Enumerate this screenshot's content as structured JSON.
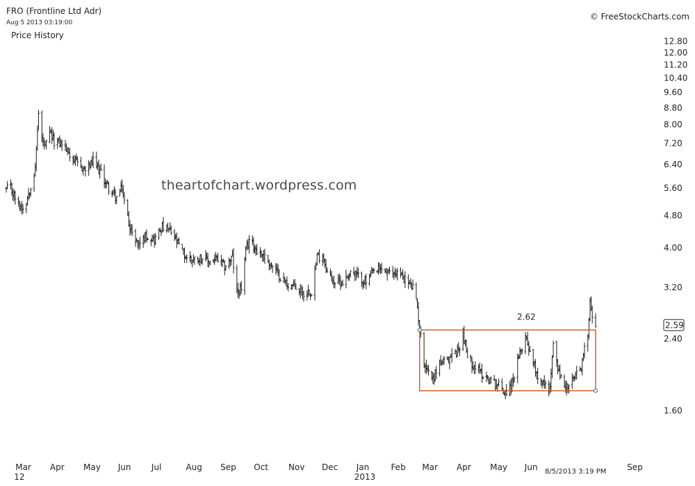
{
  "header": {
    "symbol": "FRO (Frontline Ltd Adr)",
    "timestamp": "Aug 5 2013 03:19:00",
    "panel_title": "Price History",
    "source": "© FreeStockCharts.com",
    "watermark": "theartofchart.wordpress.com"
  },
  "chart_data": {
    "type": "ohlc",
    "title": "Price History",
    "y_scale": "log",
    "ylim": [
      1.4,
      13.5
    ],
    "y_ticks": [
      1.6,
      2.4,
      3.2,
      4.0,
      4.8,
      5.6,
      6.4,
      7.2,
      8.0,
      8.8,
      9.6,
      10.4,
      11.2,
      12.0,
      12.8
    ],
    "y_tick_labels": [
      "1.60",
      "2.40",
      "3.20",
      "4.00",
      "4.80",
      "5.60",
      "6.40",
      "7.20",
      "8.00",
      "8.80",
      "9.60",
      "10.40",
      "11.20",
      "12.00",
      "12.80"
    ],
    "x_ticks": [
      {
        "label": "Mar",
        "sub": "12",
        "date": "2012-03-01"
      },
      {
        "label": "Apr",
        "sub": "",
        "date": "2012-04-01"
      },
      {
        "label": "May",
        "sub": "",
        "date": "2012-05-01"
      },
      {
        "label": "Jun",
        "sub": "",
        "date": "2012-06-01"
      },
      {
        "label": "Jul",
        "sub": "",
        "date": "2012-07-01"
      },
      {
        "label": "Aug",
        "sub": "",
        "date": "2012-08-01"
      },
      {
        "label": "Sep",
        "sub": "",
        "date": "2012-09-01"
      },
      {
        "label": "Oct",
        "sub": "",
        "date": "2012-10-01"
      },
      {
        "label": "Nov",
        "sub": "",
        "date": "2012-11-01"
      },
      {
        "label": "Dec",
        "sub": "",
        "date": "2012-12-01"
      },
      {
        "label": "Jan",
        "sub": "2013",
        "date": "2013-01-01"
      },
      {
        "label": "Feb",
        "sub": "",
        "date": "2013-02-01"
      },
      {
        "label": "Mar",
        "sub": "",
        "date": "2013-03-01"
      },
      {
        "label": "Apr",
        "sub": "",
        "date": "2013-04-01"
      },
      {
        "label": "May",
        "sub": "",
        "date": "2013-05-01"
      },
      {
        "label": "Jun",
        "sub": "",
        "date": "2013-06-01"
      },
      {
        "label": "Sep",
        "sub": "",
        "date": "2013-09-01"
      }
    ],
    "cursor_label": "8/5/2013 3:19 PM",
    "last_price": "2.59",
    "range_box": {
      "start": "2013-02-28",
      "end": "2013-08-05",
      "upper": 2.52,
      "lower": 1.79,
      "label": "2.62",
      "color": "#c8622a"
    },
    "price_path": [
      [
        "2012-02-20",
        5.5
      ],
      [
        "2012-02-27",
        5.6
      ],
      [
        "2012-03-05",
        5.1
      ],
      [
        "2012-03-10",
        5.0
      ],
      [
        "2012-03-16",
        5.7
      ],
      [
        "2012-03-20",
        6.2
      ],
      [
        "2012-03-22",
        7.8
      ],
      [
        "2012-03-24",
        9.3
      ],
      [
        "2012-03-26",
        7.4
      ],
      [
        "2012-03-29",
        7.0
      ],
      [
        "2012-04-02",
        7.6
      ],
      [
        "2012-04-06",
        7.3
      ],
      [
        "2012-04-13",
        7.2
      ],
      [
        "2012-04-20",
        6.8
      ],
      [
        "2012-04-27",
        6.4
      ],
      [
        "2012-05-04",
        6.2
      ],
      [
        "2012-05-11",
        6.5
      ],
      [
        "2012-05-18",
        6.1
      ],
      [
        "2012-05-25",
        5.6
      ],
      [
        "2012-06-01",
        5.3
      ],
      [
        "2012-06-06",
        5.6
      ],
      [
        "2012-06-09",
        5.0
      ],
      [
        "2012-06-15",
        4.3
      ],
      [
        "2012-06-21",
        4.1
      ],
      [
        "2012-06-28",
        4.3
      ],
      [
        "2012-07-05",
        4.2
      ],
      [
        "2012-07-12",
        4.5
      ],
      [
        "2012-07-19",
        4.4
      ],
      [
        "2012-07-26",
        4.1
      ],
      [
        "2012-08-02",
        3.8
      ],
      [
        "2012-08-09",
        3.75
      ],
      [
        "2012-08-16",
        3.8
      ],
      [
        "2012-08-23",
        3.7
      ],
      [
        "2012-08-30",
        3.75
      ],
      [
        "2012-09-06",
        3.6
      ],
      [
        "2012-09-13",
        3.8
      ],
      [
        "2012-09-17",
        3.1
      ],
      [
        "2012-09-21",
        3.2
      ],
      [
        "2012-09-25",
        3.9
      ],
      [
        "2012-09-28",
        4.2
      ],
      [
        "2012-10-05",
        3.95
      ],
      [
        "2012-10-12",
        3.8
      ],
      [
        "2012-10-19",
        3.6
      ],
      [
        "2012-10-26",
        3.4
      ],
      [
        "2012-11-02",
        3.25
      ],
      [
        "2012-11-09",
        3.2
      ],
      [
        "2012-11-16",
        3.1
      ],
      [
        "2012-11-23",
        3.15
      ],
      [
        "2012-11-28",
        3.8
      ],
      [
        "2012-12-03",
        3.85
      ],
      [
        "2012-12-07",
        3.5
      ],
      [
        "2012-12-14",
        3.3
      ],
      [
        "2012-12-21",
        3.3
      ],
      [
        "2012-12-28",
        3.5
      ],
      [
        "2013-01-04",
        3.4
      ],
      [
        "2013-01-11",
        3.3
      ],
      [
        "2013-01-18",
        3.5
      ],
      [
        "2013-01-25",
        3.55
      ],
      [
        "2013-02-01",
        3.45
      ],
      [
        "2013-02-08",
        3.5
      ],
      [
        "2013-02-15",
        3.35
      ],
      [
        "2013-02-22",
        3.2
      ],
      [
        "2013-02-26",
        2.85
      ],
      [
        "2013-02-28",
        2.55
      ],
      [
        "2013-03-04",
        2.1
      ],
      [
        "2013-03-08",
        2.0
      ],
      [
        "2013-03-12",
        1.92
      ],
      [
        "2013-03-18",
        2.1
      ],
      [
        "2013-03-25",
        2.1
      ],
      [
        "2013-03-29",
        2.2
      ],
      [
        "2013-04-04",
        2.25
      ],
      [
        "2013-04-08",
        2.5
      ],
      [
        "2013-04-12",
        2.15
      ],
      [
        "2013-04-19",
        2.05
      ],
      [
        "2013-04-26",
        1.95
      ],
      [
        "2013-05-03",
        1.9
      ],
      [
        "2013-05-10",
        1.85
      ],
      [
        "2013-05-15",
        1.78
      ],
      [
        "2013-05-21",
        1.82
      ],
      [
        "2013-05-27",
        2.1
      ],
      [
        "2013-06-03",
        2.45
      ],
      [
        "2013-06-08",
        2.2
      ],
      [
        "2013-06-14",
        1.95
      ],
      [
        "2013-06-20",
        1.85
      ],
      [
        "2013-06-25",
        1.82
      ],
      [
        "2013-06-29",
        2.5
      ],
      [
        "2013-07-02",
        2.0
      ],
      [
        "2013-07-08",
        1.85
      ],
      [
        "2013-07-12",
        1.82
      ],
      [
        "2013-07-18",
        1.95
      ],
      [
        "2013-07-22",
        2.0
      ],
      [
        "2013-07-26",
        2.25
      ],
      [
        "2013-07-29",
        2.45
      ],
      [
        "2013-07-31",
        3.05
      ],
      [
        "2013-08-02",
        2.7
      ],
      [
        "2013-08-05",
        2.59
      ]
    ]
  }
}
